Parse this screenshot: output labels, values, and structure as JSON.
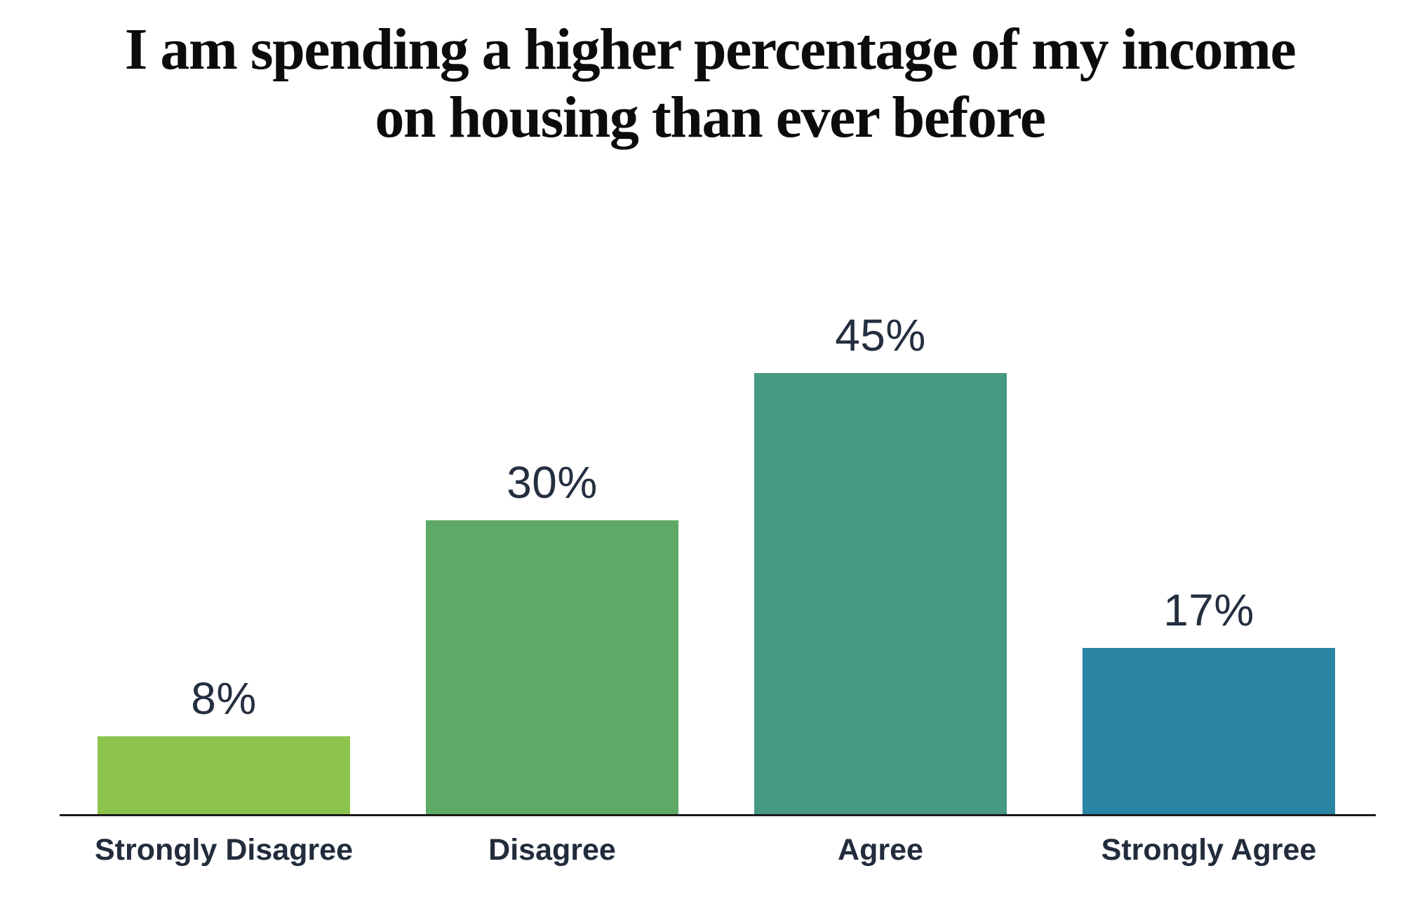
{
  "header": {
    "title_line1": "I am spending a higher percentage of my income",
    "title_line2": "on housing than ever before"
  },
  "chart_data": {
    "type": "bar",
    "title": "I am spending a higher percentage of my income on housing than ever before",
    "categories": [
      "Strongly Disagree",
      "Disagree",
      "Agree",
      "Strongly Agree"
    ],
    "values": [
      8,
      30,
      45,
      17
    ],
    "value_labels": [
      "8%",
      "30%",
      "45%",
      "17%"
    ],
    "series_colors": [
      "#8cc34c",
      "#5ea965",
      "#469982",
      "#2a84a4"
    ],
    "value_label_color": "#242f3f",
    "category_label_color": "#222c3c",
    "title_color": "#0c0c0c",
    "axis_color": "#1a1a1a",
    "background": "#ffffff",
    "xlabel": "",
    "ylabel": "",
    "ylim": [
      0,
      50
    ],
    "grid": false,
    "legend": false,
    "value_label_position": "above-bar",
    "baseline_axis": "x-axis only"
  }
}
